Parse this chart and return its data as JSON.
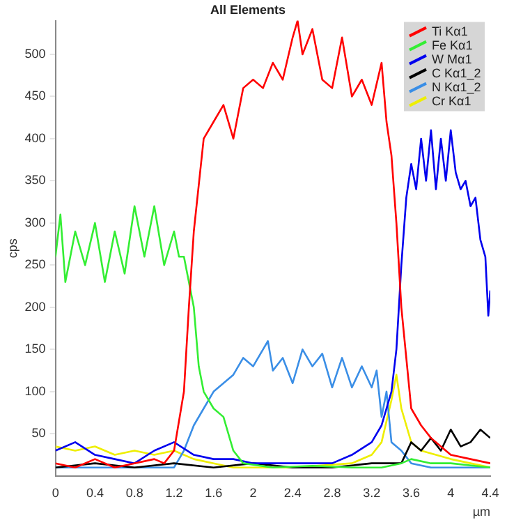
{
  "chart_data": {
    "type": "line",
    "title": "All Elements",
    "xlabel": "µm",
    "ylabel": "cps",
    "xlim": [
      0,
      4.4
    ],
    "xticks": [
      0,
      0.4,
      0.8,
      1.2,
      1.6,
      2,
      2.4,
      2.8,
      3.2,
      3.6,
      4,
      4.4
    ],
    "ylim": [
      0,
      540
    ],
    "yticks": [
      50,
      100,
      150,
      200,
      250,
      300,
      350,
      400,
      450,
      500
    ],
    "grid": false,
    "legend": "top right",
    "marker": "none",
    "line_style": "solid",
    "series": [
      {
        "name": "Ti Kα1",
        "color": "#ff0000",
        "x": [
          0,
          0.2,
          0.4,
          0.6,
          0.8,
          1.0,
          1.1,
          1.2,
          1.3,
          1.35,
          1.4,
          1.5,
          1.6,
          1.7,
          1.8,
          1.9,
          2.0,
          2.1,
          2.2,
          2.3,
          2.4,
          2.45,
          2.5,
          2.6,
          2.7,
          2.8,
          2.9,
          3.0,
          3.1,
          3.2,
          3.3,
          3.35,
          3.4,
          3.45,
          3.5,
          3.6,
          3.7,
          3.8,
          3.9,
          4.0,
          4.2,
          4.4
        ],
        "values": [
          15,
          10,
          20,
          10,
          15,
          20,
          15,
          30,
          100,
          200,
          290,
          400,
          420,
          440,
          400,
          460,
          470,
          460,
          490,
          470,
          520,
          540,
          500,
          530,
          470,
          460,
          520,
          450,
          470,
          440,
          490,
          420,
          380,
          300,
          200,
          80,
          60,
          45,
          35,
          25,
          20,
          15
        ]
      },
      {
        "name": "Fe Kα1",
        "color": "#33ee33",
        "x": [
          0,
          0.05,
          0.1,
          0.2,
          0.3,
          0.4,
          0.5,
          0.6,
          0.7,
          0.8,
          0.9,
          1.0,
          1.1,
          1.2,
          1.25,
          1.3,
          1.4,
          1.45,
          1.5,
          1.6,
          1.7,
          1.8,
          1.9,
          2.2,
          2.6,
          3.0,
          3.3,
          3.5,
          3.6,
          3.8,
          4.0,
          4.4
        ],
        "values": [
          260,
          310,
          230,
          290,
          250,
          300,
          230,
          290,
          240,
          320,
          260,
          320,
          250,
          290,
          260,
          260,
          200,
          130,
          100,
          80,
          70,
          30,
          15,
          10,
          12,
          10,
          10,
          15,
          20,
          15,
          15,
          10
        ]
      },
      {
        "name": "W Mα1",
        "color": "#0000ee",
        "x": [
          0,
          0.2,
          0.4,
          0.6,
          0.8,
          1.0,
          1.2,
          1.4,
          1.6,
          1.8,
          2.0,
          2.4,
          2.8,
          3.0,
          3.2,
          3.3,
          3.4,
          3.45,
          3.5,
          3.55,
          3.6,
          3.65,
          3.7,
          3.75,
          3.8,
          3.85,
          3.9,
          3.95,
          4.0,
          4.05,
          4.1,
          4.15,
          4.2,
          4.25,
          4.3,
          4.35,
          4.38,
          4.4
        ],
        "values": [
          30,
          40,
          25,
          20,
          15,
          30,
          40,
          25,
          20,
          20,
          15,
          15,
          15,
          25,
          40,
          60,
          100,
          150,
          250,
          330,
          370,
          340,
          400,
          350,
          410,
          340,
          400,
          350,
          410,
          360,
          340,
          350,
          320,
          330,
          280,
          260,
          190,
          220
        ]
      },
      {
        "name": "C Kα1_2",
        "color": "#000000",
        "x": [
          0,
          0.4,
          0.8,
          1.2,
          1.6,
          2.0,
          2.4,
          2.8,
          3.2,
          3.5,
          3.6,
          3.7,
          3.8,
          3.9,
          4.0,
          4.1,
          4.2,
          4.3,
          4.4
        ],
        "values": [
          10,
          15,
          10,
          15,
          10,
          15,
          10,
          10,
          15,
          15,
          40,
          30,
          45,
          30,
          55,
          35,
          40,
          55,
          45
        ]
      },
      {
        "name": "N Kα1_2",
        "color": "#3a8ee6",
        "x": [
          0,
          0.6,
          1.2,
          1.3,
          1.4,
          1.5,
          1.6,
          1.7,
          1.8,
          1.9,
          2.0,
          2.1,
          2.15,
          2.2,
          2.3,
          2.4,
          2.5,
          2.6,
          2.7,
          2.8,
          2.9,
          3.0,
          3.1,
          3.2,
          3.25,
          3.3,
          3.35,
          3.4,
          3.5,
          3.6,
          3.8,
          4.4
        ],
        "values": [
          10,
          10,
          10,
          30,
          60,
          80,
          100,
          110,
          120,
          140,
          130,
          150,
          160,
          125,
          140,
          110,
          150,
          130,
          145,
          105,
          140,
          105,
          130,
          105,
          125,
          70,
          100,
          40,
          30,
          15,
          10,
          10
        ]
      },
      {
        "name": "Cr Kα1",
        "color": "#eeee00",
        "x": [
          0,
          0.2,
          0.4,
          0.6,
          0.8,
          1.0,
          1.2,
          1.4,
          1.6,
          1.8,
          2.4,
          3.0,
          3.2,
          3.3,
          3.4,
          3.45,
          3.5,
          3.6,
          3.7,
          4.0,
          4.4
        ],
        "values": [
          35,
          30,
          35,
          25,
          30,
          25,
          30,
          20,
          15,
          10,
          10,
          15,
          25,
          40,
          90,
          120,
          80,
          40,
          30,
          20,
          10
        ]
      }
    ]
  }
}
